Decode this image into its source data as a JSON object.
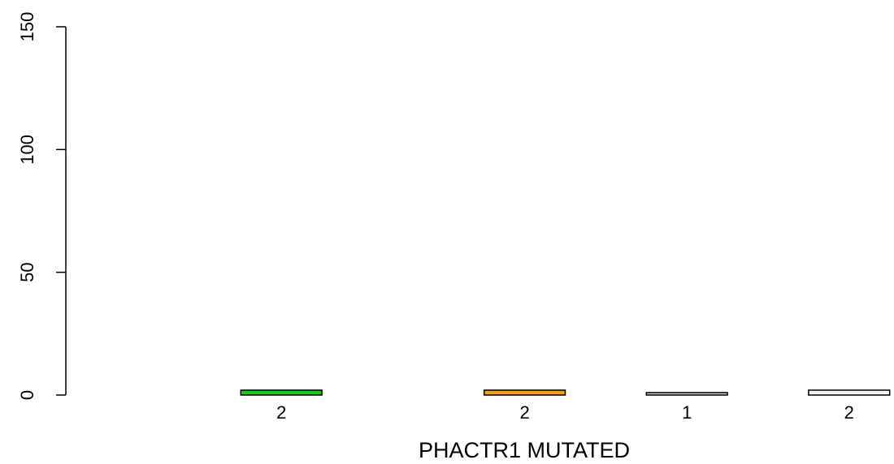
{
  "chart_data": {
    "type": "bar",
    "title": "",
    "xlabel": "PHACTR1 MUTATED",
    "ylabel": "",
    "ylim": [
      0,
      150
    ],
    "yticks": [
      0,
      50,
      100,
      150
    ],
    "grid": false,
    "slots": 9,
    "bars": [
      {
        "slot": 1,
        "value": 0,
        "color": "#ffffff",
        "label": ""
      },
      {
        "slot": 2,
        "value": 2,
        "color": "#1fc41f",
        "label": "2"
      },
      {
        "slot": 3,
        "value": 0,
        "color": "#ffffff",
        "label": ""
      },
      {
        "slot": 4,
        "value": 0,
        "color": "#ffffff",
        "label": ""
      },
      {
        "slot": 5,
        "value": 2,
        "color": "#f0a020",
        "label": "2"
      },
      {
        "slot": 6,
        "value": 0,
        "color": "#ffffff",
        "label": ""
      },
      {
        "slot": 7,
        "value": 1,
        "color": "#d0d0d0",
        "label": "1"
      },
      {
        "slot": 8,
        "value": 0,
        "color": "#ffffff",
        "label": ""
      },
      {
        "slot": 9,
        "value": 2,
        "color": "#eef4f8",
        "label": "2"
      }
    ]
  }
}
